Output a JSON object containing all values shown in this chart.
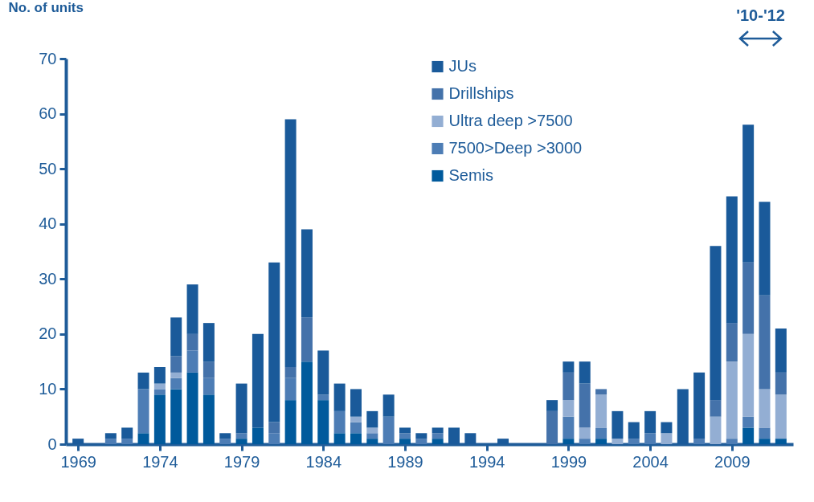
{
  "chart_data": {
    "type": "bar",
    "stacked": true,
    "ylabel": "No. of units",
    "annotations": [
      "'10-'12"
    ],
    "x": [
      1969,
      1970,
      1971,
      1972,
      1973,
      1974,
      1975,
      1976,
      1977,
      1978,
      1979,
      1980,
      1981,
      1982,
      1983,
      1984,
      1985,
      1986,
      1987,
      1988,
      1989,
      1990,
      1991,
      1992,
      1993,
      1994,
      1995,
      1996,
      1997,
      1998,
      1999,
      2000,
      2001,
      2002,
      2003,
      2004,
      2005,
      2006,
      2007,
      2008,
      2009,
      2010,
      2011,
      2012
    ],
    "xlim": [
      1968.5,
      2012.5
    ],
    "xticks": [
      1969,
      1974,
      1979,
      1984,
      1989,
      1994,
      1999,
      2004,
      2009
    ],
    "ylim": [
      0,
      70
    ],
    "yticks": [
      0,
      10,
      20,
      30,
      40,
      50,
      60,
      70
    ],
    "grid": false,
    "legend": "top",
    "series": [
      {
        "name": "Semis",
        "color": "#005a9c",
        "values": [
          0,
          0,
          0,
          0,
          2,
          9,
          10,
          13,
          9,
          0,
          1,
          3,
          0,
          8,
          15,
          8,
          2,
          2,
          1,
          0,
          1,
          0,
          1,
          0,
          0,
          0,
          0,
          0,
          0,
          0,
          1,
          0,
          1,
          0,
          0,
          0,
          0,
          0,
          0,
          0,
          0,
          3,
          1,
          1
        ]
      },
      {
        "name": "7500>Deep >3000",
        "color": "#4d7db5",
        "values": [
          0,
          0,
          1,
          1,
          8,
          1,
          2,
          4,
          3,
          1,
          1,
          0,
          2,
          4,
          0,
          1,
          4,
          2,
          1,
          5,
          1,
          1,
          1,
          0,
          0,
          0,
          0,
          0,
          0,
          0,
          4,
          1,
          2,
          0,
          1,
          2,
          0,
          0,
          1,
          0,
          1,
          2,
          2,
          0
        ]
      },
      {
        "name": "Ultra deep >7500",
        "color": "#93aed3",
        "values": [
          0,
          0,
          0,
          0,
          0,
          1,
          1,
          0,
          0,
          0,
          0,
          0,
          0,
          0,
          0,
          0,
          0,
          1,
          1,
          0,
          0,
          0,
          0,
          0,
          0,
          0,
          0,
          0,
          0,
          0,
          3,
          2,
          6,
          1,
          0,
          0,
          2,
          0,
          0,
          5,
          14,
          15,
          7,
          8
        ]
      },
      {
        "name": "Drillships",
        "color": "#4472aa",
        "values": [
          0,
          0,
          0,
          0,
          0,
          0,
          3,
          3,
          3,
          0,
          0,
          0,
          2,
          2,
          8,
          0,
          0,
          0,
          0,
          0,
          0,
          0,
          0,
          0,
          0,
          0,
          0,
          0,
          0,
          6,
          5,
          8,
          1,
          0,
          0,
          0,
          0,
          0,
          0,
          3,
          7,
          13,
          17,
          4
        ]
      },
      {
        "name": "JUs",
        "color": "#1a5a9a",
        "values": [
          1,
          0,
          1,
          2,
          3,
          3,
          7,
          9,
          7,
          1,
          9,
          17,
          29,
          45,
          16,
          8,
          5,
          5,
          3,
          4,
          1,
          1,
          1,
          3,
          2,
          0,
          1,
          0,
          0,
          2,
          2,
          4,
          0,
          5,
          3,
          4,
          2,
          10,
          12,
          28,
          23,
          25,
          17,
          8
        ]
      }
    ]
  }
}
